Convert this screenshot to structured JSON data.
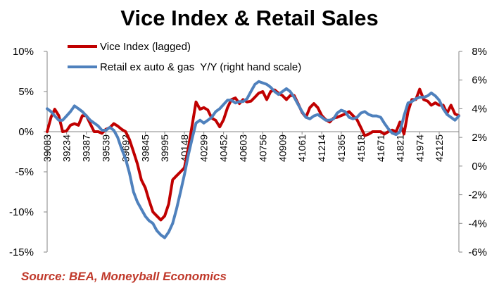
{
  "title": "Vice Index & Retail Sales",
  "source": "Source: BEA, Moneyball Economics",
  "chart_data": {
    "type": "line",
    "title": "Vice Index & Retail Sales",
    "left_axis": {
      "ylim": [
        -0.15,
        0.1
      ],
      "ticks": [
        0.1,
        0.05,
        0.0,
        -0.05,
        -0.1,
        -0.15
      ],
      "tick_labels": [
        "10%",
        "5%",
        "0%",
        "-5%",
        "-10%",
        "-15%"
      ]
    },
    "right_axis": {
      "ylim": [
        -6,
        8
      ],
      "ticks": [
        8,
        6,
        4,
        2,
        0,
        -2,
        -4,
        -6
      ],
      "tick_labels": [
        "8%",
        "6%",
        "4%",
        "2%",
        "0%",
        "-2%",
        "-4%",
        "-6%"
      ]
    },
    "x_tick_labels": [
      "39083",
      "39234",
      "39387",
      "39539",
      "39692",
      "39845",
      "39995",
      "40148",
      "40299",
      "40452",
      "40603",
      "40756",
      "40909",
      "41061",
      "41214",
      "41365",
      "41518",
      "41671",
      "41821",
      "41974",
      "42125"
    ],
    "x_range": [
      39083,
      42278
    ],
    "grid": false,
    "legend_position": "top-left",
    "series": [
      {
        "name": "Vice Index (lagged)",
        "axis": "left",
        "color": "#c00000",
        "x": [
          39083,
          39113,
          39142,
          39173,
          39203,
          39234,
          39264,
          39295,
          39326,
          39356,
          39387,
          39417,
          39448,
          39479,
          39508,
          39539,
          39569,
          39600,
          39630,
          39661,
          39692,
          39722,
          39753,
          39783,
          39814,
          39845,
          39873,
          39904,
          39934,
          39965,
          39995,
          40026,
          40057,
          40087,
          40118,
          40148,
          40179,
          40210,
          40238,
          40269,
          40299,
          40330,
          40360,
          40391,
          40422,
          40452,
          40483,
          40513,
          40544,
          40575,
          40603,
          40634,
          40664,
          40695,
          40725,
          40756,
          40787,
          40817,
          40848,
          40878,
          40909,
          40940,
          40969,
          41000,
          41030,
          41061,
          41091,
          41122,
          41153,
          41183,
          41214,
          41244,
          41275,
          41306,
          41334,
          41365,
          41395,
          41426,
          41456,
          41487,
          41518,
          41548,
          41579,
          41609,
          41640,
          41671,
          41699,
          41730,
          41760,
          41791,
          41821,
          41852,
          41883,
          41913,
          41944,
          41974,
          42005,
          42036,
          42064,
          42095,
          42125,
          42156,
          42186,
          42217,
          42248,
          42278
        ],
        "values": [
          0.0,
          0.018,
          0.028,
          0.02,
          0.0,
          0.001,
          0.008,
          0.01,
          0.008,
          0.02,
          0.02,
          0.01,
          0.0,
          0.0,
          -0.002,
          0.003,
          0.005,
          0.01,
          0.007,
          0.003,
          0.0,
          -0.01,
          -0.025,
          -0.04,
          -0.06,
          -0.07,
          -0.085,
          -0.1,
          -0.105,
          -0.11,
          -0.105,
          -0.09,
          -0.06,
          -0.055,
          -0.05,
          -0.045,
          -0.02,
          0.01,
          0.037,
          0.028,
          0.03,
          0.027,
          0.017,
          0.014,
          0.006,
          0.015,
          0.03,
          0.04,
          0.042,
          0.035,
          0.04,
          0.037,
          0.038,
          0.043,
          0.048,
          0.05,
          0.04,
          0.05,
          0.052,
          0.048,
          0.045,
          0.04,
          0.045,
          0.045,
          0.035,
          0.024,
          0.018,
          0.03,
          0.035,
          0.03,
          0.02,
          0.015,
          0.012,
          0.017,
          0.018,
          0.02,
          0.022,
          0.025,
          0.02,
          0.015,
          0.005,
          -0.005,
          -0.003,
          0.0,
          0.0,
          0.0,
          -0.003,
          0.0,
          0.002,
          0.0,
          0.012,
          -0.003,
          0.025,
          0.04,
          0.04,
          0.053,
          0.04,
          0.038,
          0.033,
          0.036,
          0.033,
          0.033,
          0.023,
          0.033,
          0.022,
          0.02
        ]
      },
      {
        "name": "Retail ex auto & gas  Y/Y (right hand scale)",
        "axis": "right",
        "color": "#4f81bd",
        "x": [
          39083,
          39113,
          39142,
          39173,
          39203,
          39234,
          39264,
          39295,
          39326,
          39356,
          39387,
          39417,
          39448,
          39479,
          39508,
          39539,
          39569,
          39600,
          39630,
          39661,
          39692,
          39722,
          39753,
          39783,
          39814,
          39845,
          39873,
          39904,
          39934,
          39965,
          39995,
          40026,
          40057,
          40087,
          40118,
          40148,
          40179,
          40210,
          40238,
          40269,
          40299,
          40330,
          40360,
          40391,
          40422,
          40452,
          40483,
          40513,
          40544,
          40575,
          40603,
          40634,
          40664,
          40695,
          40725,
          40756,
          40787,
          40817,
          40848,
          40878,
          40909,
          40940,
          40969,
          41000,
          41030,
          41061,
          41091,
          41122,
          41153,
          41183,
          41214,
          41244,
          41275,
          41306,
          41334,
          41365,
          41395,
          41426,
          41456,
          41487,
          41518,
          41548,
          41579,
          41609,
          41640,
          41671,
          41699,
          41730,
          41760,
          41791,
          41821,
          41852,
          41883,
          41913,
          41944,
          41974,
          42005,
          42036,
          42064,
          42095,
          42125,
          42156,
          42186,
          42217,
          42248,
          42278
        ],
        "values": [
          4.0,
          3.8,
          3.5,
          3.2,
          3.2,
          3.5,
          3.8,
          4.2,
          4.0,
          3.8,
          3.5,
          3.2,
          3.0,
          2.8,
          2.5,
          2.5,
          2.7,
          2.5,
          2.0,
          1.2,
          0.5,
          -0.5,
          -1.8,
          -2.5,
          -3.0,
          -3.5,
          -3.8,
          -4.0,
          -4.5,
          -4.8,
          -5.0,
          -4.6,
          -4.0,
          -3.0,
          -1.8,
          -0.6,
          0.8,
          2.0,
          3.0,
          3.2,
          3.0,
          3.2,
          3.4,
          3.8,
          4.0,
          4.3,
          4.6,
          4.6,
          4.4,
          4.5,
          4.5,
          4.7,
          5.2,
          5.7,
          5.9,
          5.8,
          5.7,
          5.5,
          5.2,
          5.0,
          5.2,
          5.4,
          5.2,
          4.8,
          4.3,
          3.8,
          3.4,
          3.3,
          3.5,
          3.6,
          3.4,
          3.2,
          3.2,
          3.3,
          3.7,
          3.9,
          3.8,
          3.4,
          3.3,
          3.4,
          3.7,
          3.8,
          3.6,
          3.5,
          3.5,
          3.4,
          3.0,
          2.6,
          2.3,
          2.2,
          2.4,
          3.5,
          4.4,
          4.5,
          4.7,
          4.8,
          4.8,
          4.9,
          5.1,
          4.9,
          4.6,
          4.0,
          3.6,
          3.4,
          3.2,
          3.5
        ]
      }
    ]
  }
}
